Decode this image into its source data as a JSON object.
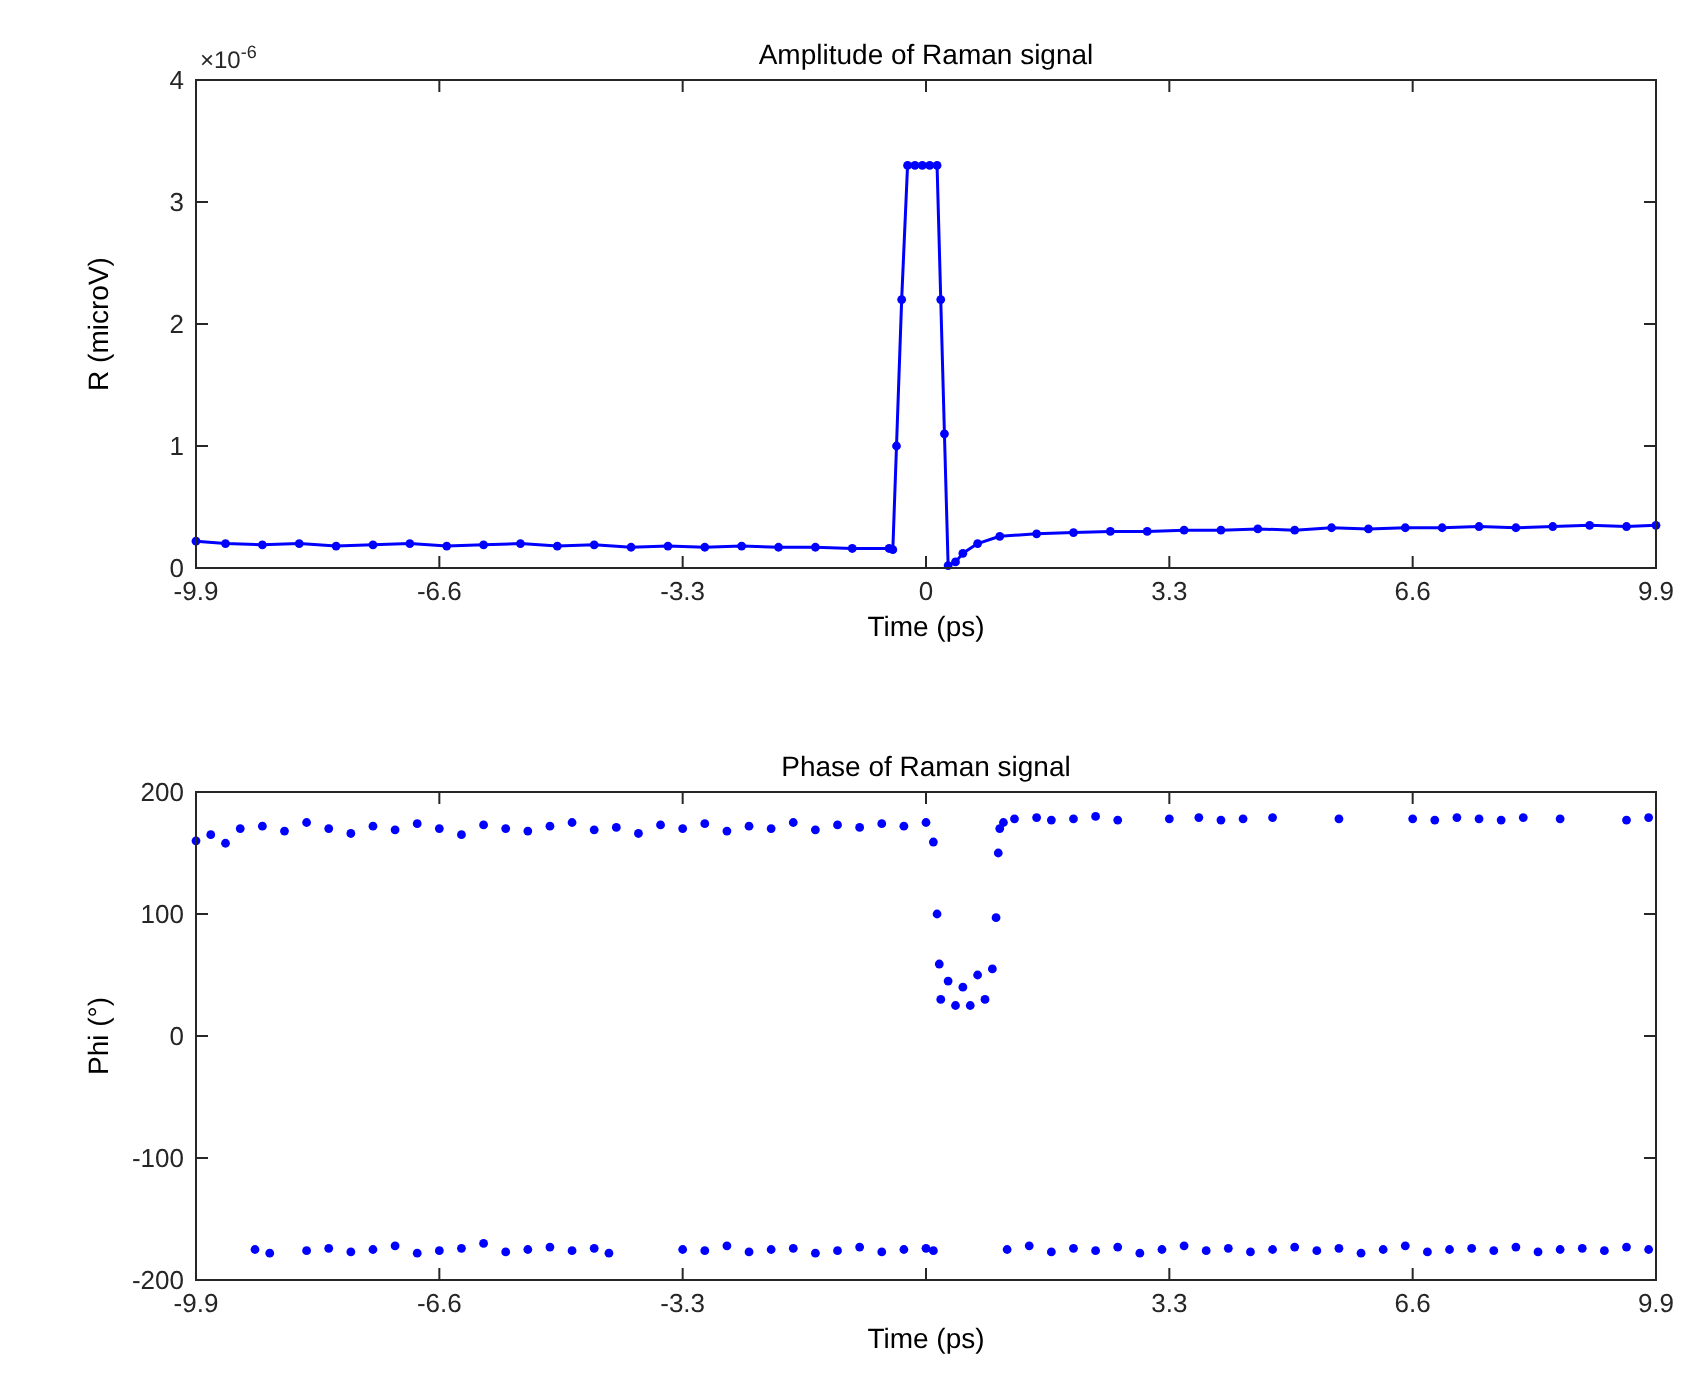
{
  "chart_data": [
    {
      "type": "line",
      "title": "Amplitude of Raman signal",
      "xlabel": "Time (ps)",
      "ylabel": "R (microV)",
      "annotations": [
        "×10$^{-6}$"
      ],
      "xlim": [
        -9.9,
        9.9
      ],
      "xticks": [
        -9.9,
        -6.6,
        -3.3,
        0,
        3.3,
        6.6,
        9.9
      ],
      "ylim": [
        0,
        4
      ],
      "yticks": [
        0,
        1,
        2,
        3,
        4
      ],
      "marker": "circle",
      "series": [
        {
          "color": "#0000ff",
          "x": [
            -9.9,
            -9.5,
            -9.0,
            -8.5,
            -8.0,
            -7.5,
            -7.0,
            -6.5,
            -6.0,
            -5.5,
            -5.0,
            -4.5,
            -4.0,
            -3.5,
            -3.0,
            -2.5,
            -2.0,
            -1.5,
            -1.0,
            -0.5,
            -0.45,
            -0.4,
            -0.33,
            -0.25,
            -0.15,
            -0.05,
            0.05,
            0.15,
            0.2,
            0.25,
            0.3,
            0.4,
            0.5,
            0.7,
            1.0,
            1.5,
            2.0,
            2.5,
            3.0,
            3.5,
            4.0,
            4.5,
            5.0,
            5.5,
            6.0,
            6.5,
            7.0,
            7.5,
            8.0,
            8.5,
            9.0,
            9.5,
            9.9
          ],
          "values": [
            0.22,
            0.2,
            0.19,
            0.2,
            0.18,
            0.19,
            0.2,
            0.18,
            0.19,
            0.2,
            0.18,
            0.19,
            0.17,
            0.18,
            0.17,
            0.18,
            0.17,
            0.17,
            0.16,
            0.16,
            0.15,
            1.0,
            2.2,
            3.3,
            3.3,
            3.3,
            3.3,
            3.3,
            2.2,
            1.1,
            0.02,
            0.05,
            0.12,
            0.2,
            0.26,
            0.28,
            0.29,
            0.3,
            0.3,
            0.31,
            0.31,
            0.32,
            0.31,
            0.33,
            0.32,
            0.33,
            0.33,
            0.34,
            0.33,
            0.34,
            0.35,
            0.34,
            0.35
          ]
        }
      ]
    },
    {
      "type": "scatter",
      "title": "Phase of Raman signal",
      "xlabel": "Time (ps)",
      "ylabel": "Phi (°)",
      "xlim": [
        -9.9,
        9.9
      ],
      "xticks": [
        -9.9,
        -6.6,
        -3.3,
        {
          "value": 0,
          "label": null
        },
        3.3,
        6.6,
        9.9
      ],
      "ylim": [
        -200,
        200
      ],
      "yticks": [
        -200,
        -100,
        0,
        100,
        200
      ],
      "marker": "circle",
      "series": [
        {
          "color": "#0000ff",
          "x": [
            -9.9,
            -9.7,
            -9.5,
            -9.3,
            -9.0,
            -8.7,
            -8.4,
            -8.1,
            -7.8,
            -7.5,
            -7.2,
            -6.9,
            -6.6,
            -6.3,
            -6.0,
            -5.7,
            -5.4,
            -5.1,
            -4.8,
            -4.5,
            -4.2,
            -3.9,
            -3.6,
            -3.3,
            -3.0,
            -2.7,
            -2.4,
            -2.1,
            -1.8,
            -1.5,
            -1.2,
            -0.9,
            -0.6,
            -0.3,
            0.0,
            -9.1,
            -8.9,
            -8.4,
            -8.1,
            -7.8,
            -7.5,
            -7.2,
            -6.9,
            -6.6,
            -6.3,
            -6.0,
            -5.7,
            -5.4,
            -5.1,
            -4.8,
            -4.5,
            -4.3,
            -3.3,
            -3.0,
            -2.7,
            -2.4,
            -2.1,
            -1.8,
            -1.5,
            -1.2,
            -0.9,
            -0.6,
            -0.3,
            0.0,
            0.1,
            0.1,
            0.15,
            0.18,
            0.2,
            0.3,
            0.4,
            0.5,
            0.6,
            0.7,
            0.8,
            0.9,
            0.95,
            0.98,
            1.0,
            1.05,
            1.1,
            1.4,
            1.7,
            2.0,
            2.3,
            2.6,
            2.9,
            3.2,
            3.5,
            3.8,
            4.1,
            4.4,
            4.7,
            5.0,
            5.3,
            5.6,
            5.9,
            6.2,
            6.5,
            6.8,
            7.1,
            7.4,
            7.7,
            8.0,
            8.3,
            8.6,
            8.9,
            9.2,
            9.5,
            9.8,
            1.2,
            1.5,
            1.7,
            2.0,
            2.3,
            2.6,
            3.3,
            3.7,
            4.0,
            4.3,
            4.7,
            5.6,
            6.6,
            6.9,
            7.2,
            7.5,
            7.8,
            8.1,
            8.6,
            9.5,
            9.8
          ],
          "values": [
            160,
            165,
            158,
            170,
            172,
            168,
            175,
            170,
            166,
            172,
            169,
            174,
            170,
            165,
            173,
            170,
            168,
            172,
            175,
            169,
            171,
            166,
            173,
            170,
            174,
            168,
            172,
            170,
            175,
            169,
            173,
            171,
            174,
            172,
            175,
            -175,
            -178,
            -176,
            -174,
            -177,
            -175,
            -172,
            -178,
            -176,
            -174,
            -170,
            -177,
            -175,
            -173,
            -176,
            -174,
            -178,
            -175,
            -176,
            -172,
            -177,
            -175,
            -174,
            -178,
            -176,
            -173,
            -177,
            -175,
            -174,
            -176,
            159,
            100,
            59,
            30,
            45,
            25,
            40,
            25,
            50,
            30,
            55,
            97,
            150,
            170,
            175,
            -175,
            -172,
            -177,
            -174,
            -176,
            -173,
            -178,
            -175,
            -172,
            -176,
            -174,
            -177,
            -175,
            -173,
            -176,
            -174,
            -178,
            -175,
            -172,
            -177,
            -175,
            -174,
            -176,
            -173,
            -177,
            -175,
            -174,
            -176,
            -173,
            -175,
            178,
            179,
            177,
            178,
            180,
            177,
            178,
            179,
            177,
            178,
            179,
            178,
            178,
            177,
            179,
            178,
            177,
            179,
            178,
            177,
            179
          ]
        }
      ]
    }
  ]
}
